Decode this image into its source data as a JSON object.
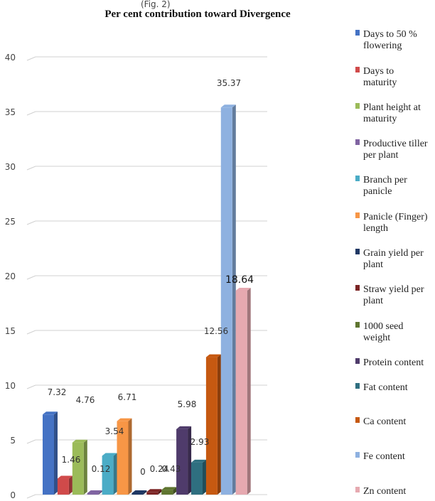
{
  "top_fragment": "(Fig. 2)",
  "chart_data": {
    "type": "bar",
    "title": "Per cent contribution toward Divergence",
    "ylim": [
      0,
      40
    ],
    "yticks": [
      0,
      5,
      10,
      15,
      20,
      25,
      30,
      35,
      40
    ],
    "grid": true,
    "legend_position": "right",
    "categories": [
      "Days to 50 % flowering",
      "Days to maturity",
      "Plant height at maturity",
      "Productive tiller per plant",
      "Branch per panicle",
      "Panicle (Finger) length",
      "Grain yield per plant",
      "Straw yield per plant",
      "1000 seed weight",
      "Protein content",
      "Fat content",
      "Ca content",
      "Fe content",
      "Zn content"
    ],
    "values": [
      7.32,
      1.46,
      4.76,
      0.12,
      3.54,
      6.71,
      0,
      0.24,
      0.43,
      5.98,
      2.93,
      12.56,
      35.37,
      18.64
    ],
    "value_labels": [
      "7.32",
      "1.46",
      "4.76",
      "0.12",
      "3.54",
      "6.71",
      "0",
      "0.24",
      "0.43",
      "5.98",
      "2.93",
      "12.56",
      "35.37",
      "18.64"
    ],
    "colors": [
      "#4472c4",
      "#d04a4a",
      "#9bbb59",
      "#8064a2",
      "#4bacc6",
      "#f79646",
      "#1f3864",
      "#7b2424",
      "#5f7530",
      "#4f3b6b",
      "#2f6f80",
      "#c65911",
      "#8eb1e0",
      "#e6a9b0"
    ]
  }
}
